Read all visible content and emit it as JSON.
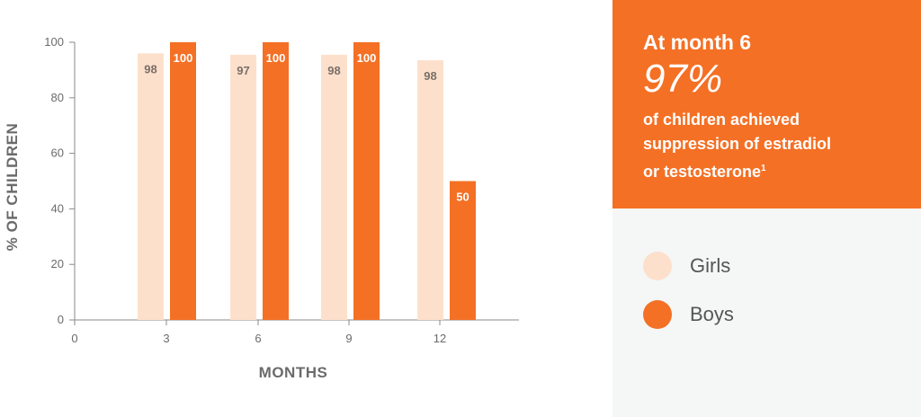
{
  "chart_data": {
    "type": "bar",
    "categories": [
      "3",
      "6",
      "9",
      "12"
    ],
    "x_ticks": [
      "0",
      "3",
      "6",
      "9",
      "12"
    ],
    "series": [
      {
        "name": "Girls",
        "values": [
          98,
          97,
          98,
          98
        ],
        "color": "#fde0cc"
      },
      {
        "name": "Boys",
        "values": [
          100,
          100,
          100,
          50
        ],
        "color": "#f47025"
      }
    ],
    "bar_display_heights": [
      [
        96,
        95.5,
        95.5,
        93.5
      ],
      [
        100,
        100,
        100,
        50
      ]
    ],
    "xlabel": "MONTHS",
    "ylabel": "% OF CHILDREN",
    "ylim": [
      0,
      100
    ],
    "yticks": [
      0,
      20,
      40,
      60,
      80,
      100
    ],
    "legend_placement": "right",
    "grid": false
  },
  "callout": {
    "headline": "At month 6",
    "stat": "97%",
    "line1": "of children achieved",
    "line2": "suppression of estradiol",
    "line3": "or testosterone",
    "footnote": "1"
  },
  "legend": {
    "items": [
      {
        "label": "Girls",
        "color": "#fde0cc"
      },
      {
        "label": "Boys",
        "color": "#f47025"
      }
    ]
  }
}
